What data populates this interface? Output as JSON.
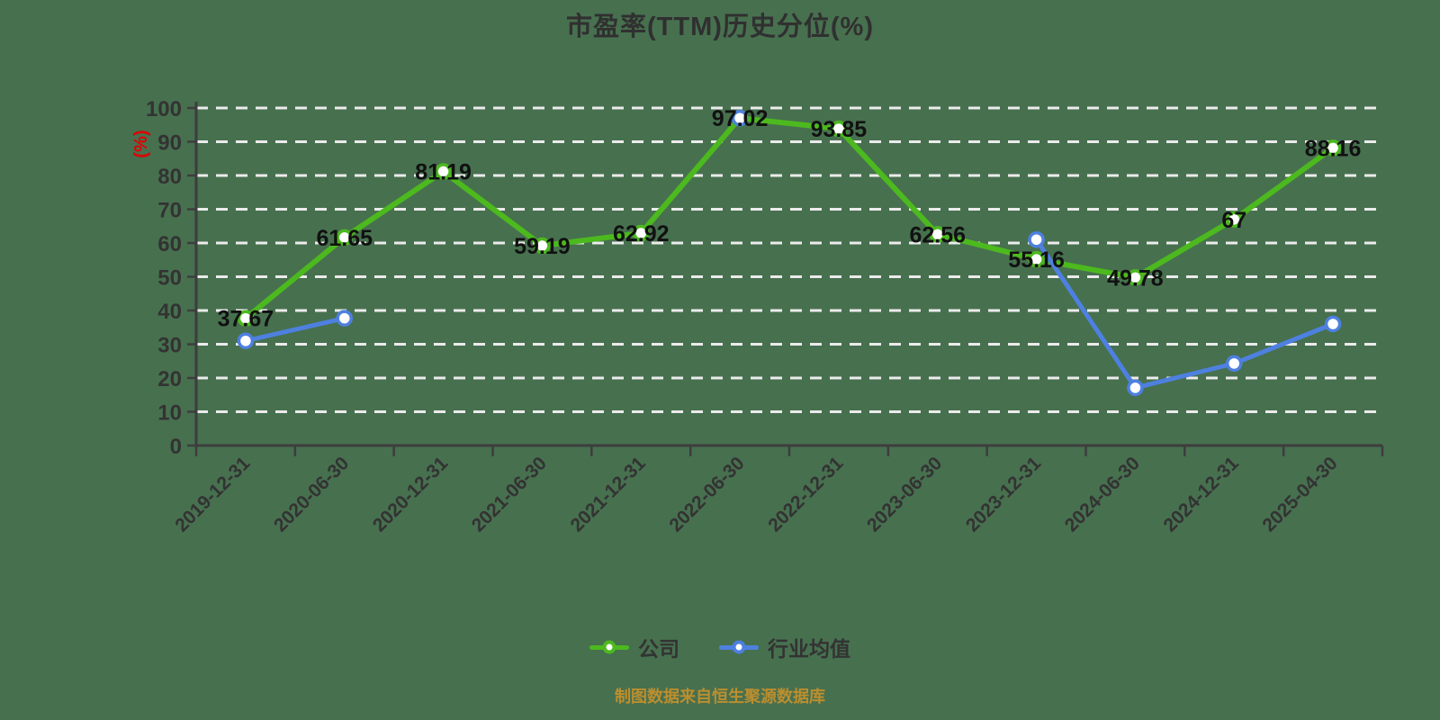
{
  "caption": "制图数据来自恒生聚源数据库",
  "colors": {
    "background": "#47704f",
    "company_green": "#4cb91e",
    "industry_blue": "#4e80e0",
    "grid": "#ebebeb",
    "axis": "#3d3d3d",
    "tick_label": "#333333",
    "data_label": "#111111",
    "title": "#303030",
    "caption": "#bc8e2e",
    "unit": "#e00000"
  },
  "chart_data": {
    "type": "line",
    "title": "市盈率(TTM)历史分位(%)",
    "xlabel": "",
    "ylabel": "(%)",
    "ylim": [
      0,
      100
    ],
    "y_tick_step": 10,
    "grid": "horizontal-dashed-white",
    "legend_position": "bottom",
    "categories": [
      "2019-12-31",
      "2020-06-30",
      "2020-12-31",
      "2021-06-30",
      "2021-12-31",
      "2022-06-30",
      "2022-12-31",
      "2023-06-30",
      "2023-12-31",
      "2024-06-30",
      "2024-12-31",
      "2025-04-30"
    ],
    "series": [
      {
        "key": "company",
        "name": "公司",
        "color": "#4cb91e",
        "values": [
          37.67,
          61.65,
          81.19,
          59.19,
          62.92,
          97.02,
          93.85,
          62.56,
          55.16,
          49.78,
          67,
          88.16
        ],
        "labels": [
          "37.67",
          "61.65",
          "81.19",
          "59.19",
          "62.92",
          "97.02",
          "93.85",
          "62.56",
          "55.16",
          "49.78",
          "67",
          "88.16"
        ],
        "show_labels": true
      },
      {
        "key": "industry",
        "name": "行业均值",
        "color": "#4e80e0",
        "values": [
          31,
          37.7,
          null,
          null,
          null,
          97,
          null,
          null,
          61,
          17.1,
          24.3,
          36
        ],
        "show_labels": false
      }
    ]
  }
}
